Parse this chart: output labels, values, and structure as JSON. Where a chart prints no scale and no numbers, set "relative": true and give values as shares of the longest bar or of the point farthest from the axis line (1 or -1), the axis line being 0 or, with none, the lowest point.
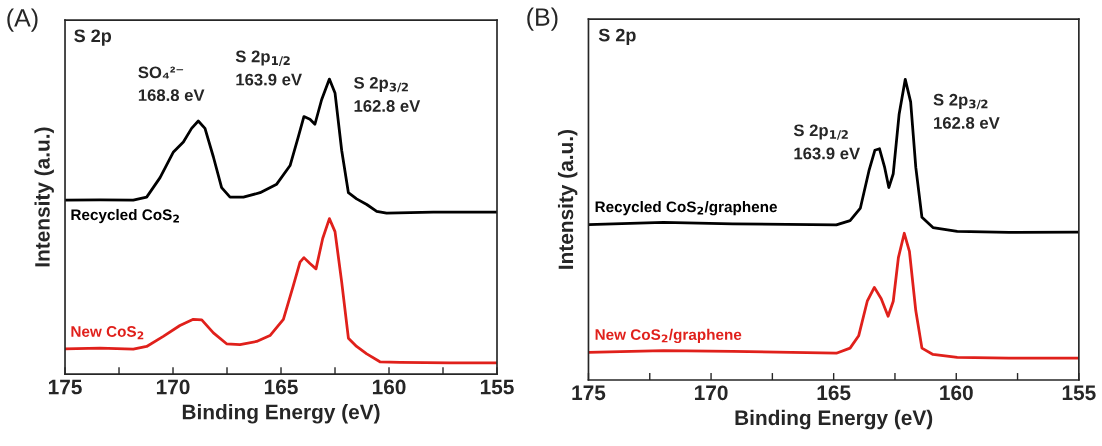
{
  "chart_data": [
    {
      "type": "line",
      "relative": true,
      "xlabel": "Binding Energy (eV)",
      "ylabel": "Intensity (a.u.)",
      "xlim": [
        175,
        155
      ],
      "xticks": [
        175,
        {
          "value": 172.5,
          "label": null
        },
        170,
        {
          "value": 167.5,
          "label": null
        },
        165,
        {
          "value": 162.5,
          "label": null
        },
        160,
        {
          "value": 157.5,
          "label": null
        },
        155
      ],
      "tick_labels": "x",
      "grid": false,
      "legend": false,
      "line_style": "solid",
      "marker": "none",
      "annotations": [
        "(A)",
        "S 2p",
        {
          "text": "SO₄²⁻\n168.8 eV",
          "x": 168.8,
          "y": 0.858
        },
        {
          "text": "S 2p$_{1/2}$\n163.9 eV",
          "x": 163.9,
          "y": 0.873
        },
        {
          "text": "S 2p$_{3/2}$\n162.8 eV",
          "x": 162.8,
          "y": 1.0
        }
      ],
      "series": [
        {
          "name": "Recycled CoS$_{2}$",
          "color": "#000000",
          "x": [
            175,
            173.38,
            171.84,
            171.22,
            170.6,
            169.98,
            169.52,
            169.14,
            168.83,
            168.52,
            168.13,
            167.75,
            167.36,
            166.74,
            165.97,
            165.2,
            164.58,
            164.2,
            163.94,
            163.66,
            163.43,
            163.12,
            162.76,
            162.5,
            162.19,
            161.88,
            161.5,
            161.03,
            160.57,
            160.11,
            157.95,
            155
          ],
          "values": [
            0.59,
            0.591,
            0.59,
            0.6,
            0.666,
            0.753,
            0.787,
            0.833,
            0.858,
            0.833,
            0.736,
            0.632,
            0.6,
            0.6,
            0.615,
            0.644,
            0.707,
            0.804,
            0.873,
            0.864,
            0.847,
            0.93,
            1.0,
            0.953,
            0.758,
            0.615,
            0.594,
            0.575,
            0.552,
            0.546,
            0.549,
            0.549
          ]
        },
        {
          "name": "New CoS$_{2}$",
          "color": "#e0201b",
          "x": [
            175,
            173.38,
            171.84,
            171.22,
            170.45,
            169.68,
            169.06,
            168.67,
            168.13,
            167.52,
            166.9,
            166.13,
            165.51,
            164.89,
            164.43,
            164.12,
            163.94,
            163.66,
            163.38,
            163.07,
            162.76,
            162.5,
            162.19,
            161.88,
            161.5,
            161.03,
            160.42,
            159.49,
            157.18,
            155
          ],
          "values": [
            0.086,
            0.088,
            0.085,
            0.094,
            0.128,
            0.165,
            0.186,
            0.184,
            0.14,
            0.103,
            0.1,
            0.111,
            0.131,
            0.186,
            0.3,
            0.38,
            0.395,
            0.375,
            0.357,
            0.46,
            0.527,
            0.483,
            0.312,
            0.122,
            0.094,
            0.069,
            0.042,
            0.04,
            0.038,
            0.038
          ]
        }
      ]
    },
    {
      "type": "line",
      "relative": true,
      "xlabel": "Binding Energy (eV)",
      "ylabel": "Intensity (a.u.)",
      "xlim": [
        175,
        155
      ],
      "xticks": [
        175,
        {
          "value": 172.5,
          "label": null
        },
        170,
        {
          "value": 167.5,
          "label": null
        },
        165,
        {
          "value": 162.5,
          "label": null
        },
        160,
        {
          "value": 157.5,
          "label": null
        },
        155
      ],
      "tick_labels": "x",
      "grid": false,
      "legend": false,
      "line_style": "solid",
      "marker": "none",
      "annotations": [
        "(B)",
        "S 2p",
        {
          "text": "S 2p$_{1/2}$\n163.9 eV",
          "x": 163.13,
          "y": 0.769
        },
        {
          "text": "S 2p$_{3/2}$\n162.8 eV",
          "x": 162.08,
          "y": 1.0
        }
      ],
      "series": [
        {
          "name": "Recycled CoS$_{2}$/graphene",
          "color": "#000000",
          "x": [
            175,
            171.94,
            169.12,
            164.89,
            164.33,
            163.91,
            163.56,
            163.32,
            163.13,
            162.92,
            162.75,
            162.57,
            162.33,
            162.08,
            161.86,
            161.65,
            161.4,
            160.95,
            159.96,
            157.85,
            155
          ],
          "values": [
            0.517,
            0.524,
            0.519,
            0.516,
            0.53,
            0.572,
            0.696,
            0.764,
            0.769,
            0.707,
            0.64,
            0.686,
            0.884,
            1.0,
            0.925,
            0.707,
            0.541,
            0.507,
            0.494,
            0.491,
            0.492
          ]
        },
        {
          "name": "New CoS$_{2}$/graphene",
          "color": "#e0201b",
          "x": [
            175,
            171.94,
            169.12,
            164.89,
            164.33,
            163.98,
            163.63,
            163.34,
            163.06,
            162.78,
            162.57,
            162.36,
            162.12,
            161.91,
            161.65,
            161.4,
            160.95,
            159.96,
            157.85,
            155
          ],
          "values": [
            0.092,
            0.098,
            0.095,
            0.089,
            0.106,
            0.147,
            0.262,
            0.308,
            0.27,
            0.212,
            0.262,
            0.407,
            0.488,
            0.428,
            0.23,
            0.106,
            0.085,
            0.075,
            0.073,
            0.073
          ]
        }
      ]
    }
  ]
}
